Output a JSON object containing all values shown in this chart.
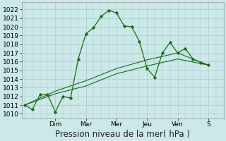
{
  "title": "",
  "xlabel": "Pression niveau de la mer( hPa )",
  "background_color": "#cce8e8",
  "grid_color": "#aacccc",
  "line_color": "#1a6b1a",
  "ylim": [
    1009.5,
    1022.8
  ],
  "yticks": [
    1010,
    1011,
    1012,
    1013,
    1014,
    1015,
    1016,
    1017,
    1018,
    1019,
    1020,
    1021,
    1022
  ],
  "xlim": [
    -0.2,
    13.0
  ],
  "day_labels": [
    "Dim",
    "Mar",
    "Mer",
    "Jeu",
    "Ven",
    "S"
  ],
  "day_positions": [
    2.0,
    4.0,
    6.0,
    8.0,
    10.0,
    12.0
  ],
  "series1_x": [
    0,
    0.5,
    1.0,
    1.5,
    2.0,
    2.5,
    3.0,
    3.5,
    4.0,
    4.5,
    5.0,
    5.5,
    6.0,
    6.5,
    7.0,
    7.5,
    8.0,
    8.5,
    9.0,
    9.5,
    10.0,
    10.5,
    11.0,
    11.5,
    12.0
  ],
  "series1_y": [
    1011.0,
    1010.5,
    1012.2,
    1012.2,
    1010.2,
    1012.0,
    1011.8,
    1016.3,
    1019.2,
    1019.9,
    1021.2,
    1021.9,
    1021.6,
    1020.1,
    1020.0,
    1018.3,
    1015.2,
    1014.2,
    1017.0,
    1018.2,
    1017.0,
    1017.5,
    1016.3,
    1015.9,
    1015.6
  ],
  "series2_x": [
    0,
    2.0,
    4.0,
    6.0,
    8.0,
    10.0,
    12.0
  ],
  "series2_y": [
    1011.0,
    1012.3,
    1013.2,
    1014.6,
    1015.5,
    1016.3,
    1015.6
  ],
  "series3_x": [
    0,
    2.0,
    4.0,
    6.0,
    8.0,
    10.0,
    12.0
  ],
  "series3_y": [
    1011.0,
    1012.6,
    1013.8,
    1015.2,
    1016.2,
    1017.0,
    1015.6
  ],
  "font_size_tick": 6.5,
  "font_size_xlabel": 8.5
}
